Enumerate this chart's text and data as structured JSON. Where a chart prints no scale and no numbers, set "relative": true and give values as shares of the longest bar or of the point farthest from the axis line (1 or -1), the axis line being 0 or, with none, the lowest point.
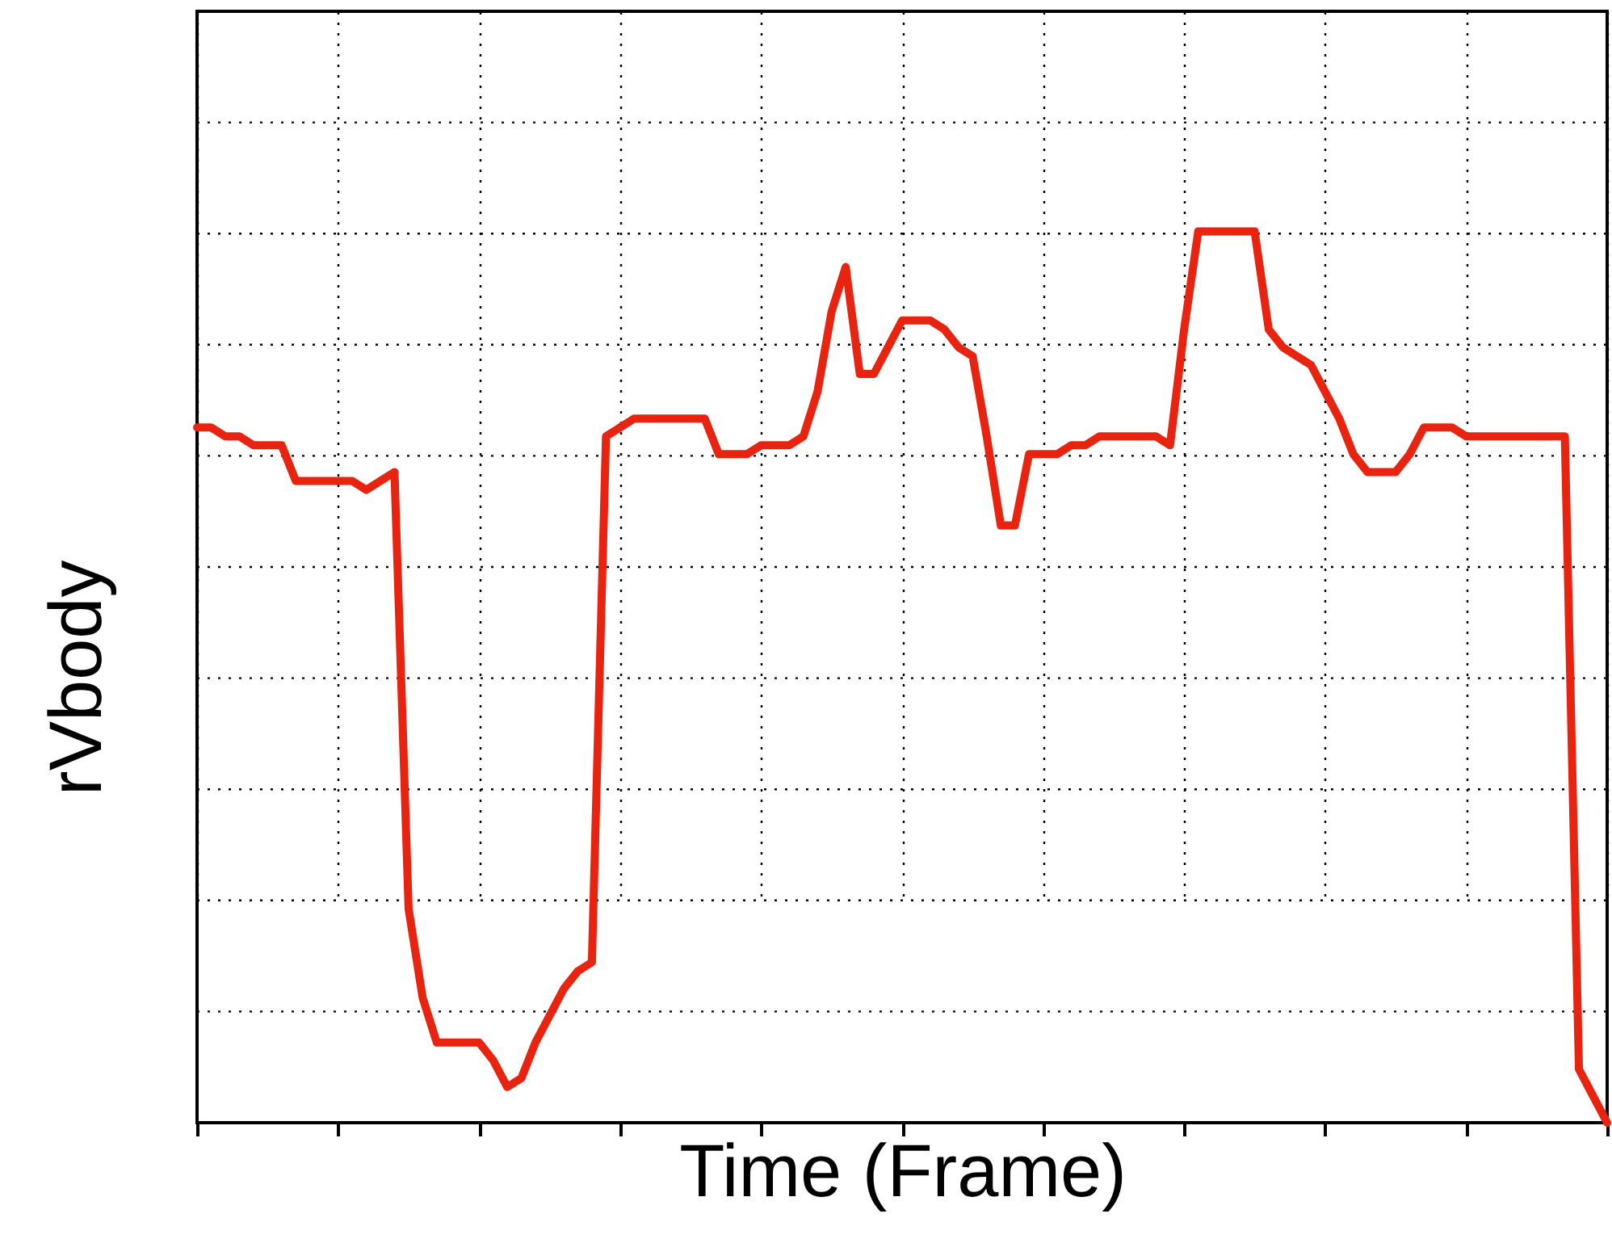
{
  "chart_data": {
    "type": "line",
    "xlabel": "Time (Frame)",
    "ylabel": "rVbody",
    "relative": true,
    "grid": true,
    "categories": [
      null,
      null,
      null,
      null,
      null,
      null,
      null,
      null,
      null,
      null,
      null,
      null,
      null,
      null,
      null,
      null,
      null,
      null,
      null,
      null,
      null,
      null,
      null,
      null,
      null,
      null,
      null,
      null,
      null,
      null,
      null,
      null,
      null,
      null,
      null,
      null,
      null,
      null,
      null,
      null,
      null,
      null,
      null,
      null,
      null,
      null,
      null,
      null,
      null,
      null,
      null,
      null,
      null,
      null,
      null,
      null,
      null,
      null,
      null,
      null,
      null,
      null,
      null,
      null,
      null,
      null,
      null,
      null,
      null,
      null,
      null,
      null,
      null,
      null,
      null,
      null,
      null,
      null,
      null,
      null,
      null,
      null,
      null,
      null,
      null,
      null,
      null,
      null,
      null,
      null,
      null,
      null,
      null,
      null,
      null,
      null,
      null,
      null,
      null,
      null,
      null
    ],
    "series": [
      {
        "color": "#e8230f",
        "values": [
          0.78,
          0.78,
          0.77,
          0.77,
          0.76,
          0.76,
          0.76,
          0.72,
          0.72,
          0.72,
          0.72,
          0.72,
          0.71,
          0.72,
          0.73,
          0.24,
          0.14,
          0.09,
          0.09,
          0.09,
          0.09,
          0.07,
          0.04,
          0.05,
          0.09,
          0.12,
          0.15,
          0.17,
          0.18,
          0.77,
          0.78,
          0.79,
          0.79,
          0.79,
          0.79,
          0.79,
          0.79,
          0.75,
          0.75,
          0.75,
          0.76,
          0.76,
          0.76,
          0.77,
          0.82,
          0.91,
          0.96,
          0.84,
          0.84,
          0.87,
          0.9,
          0.9,
          0.9,
          0.89,
          0.87,
          0.86,
          0.77,
          0.67,
          0.67,
          0.75,
          0.75,
          0.75,
          0.76,
          0.76,
          0.77,
          0.77,
          0.77,
          0.77,
          0.77,
          0.76,
          0.89,
          1.0,
          1.0,
          1.0,
          1.0,
          1.0,
          0.89,
          0.87,
          0.86,
          0.85,
          0.82,
          0.79,
          0.75,
          0.73,
          0.73,
          0.73,
          0.75,
          0.78,
          0.78,
          0.78,
          0.77,
          0.77,
          0.77,
          0.77,
          0.77,
          0.77,
          0.77,
          0.77,
          0.06,
          0.03,
          0
        ]
      }
    ]
  }
}
